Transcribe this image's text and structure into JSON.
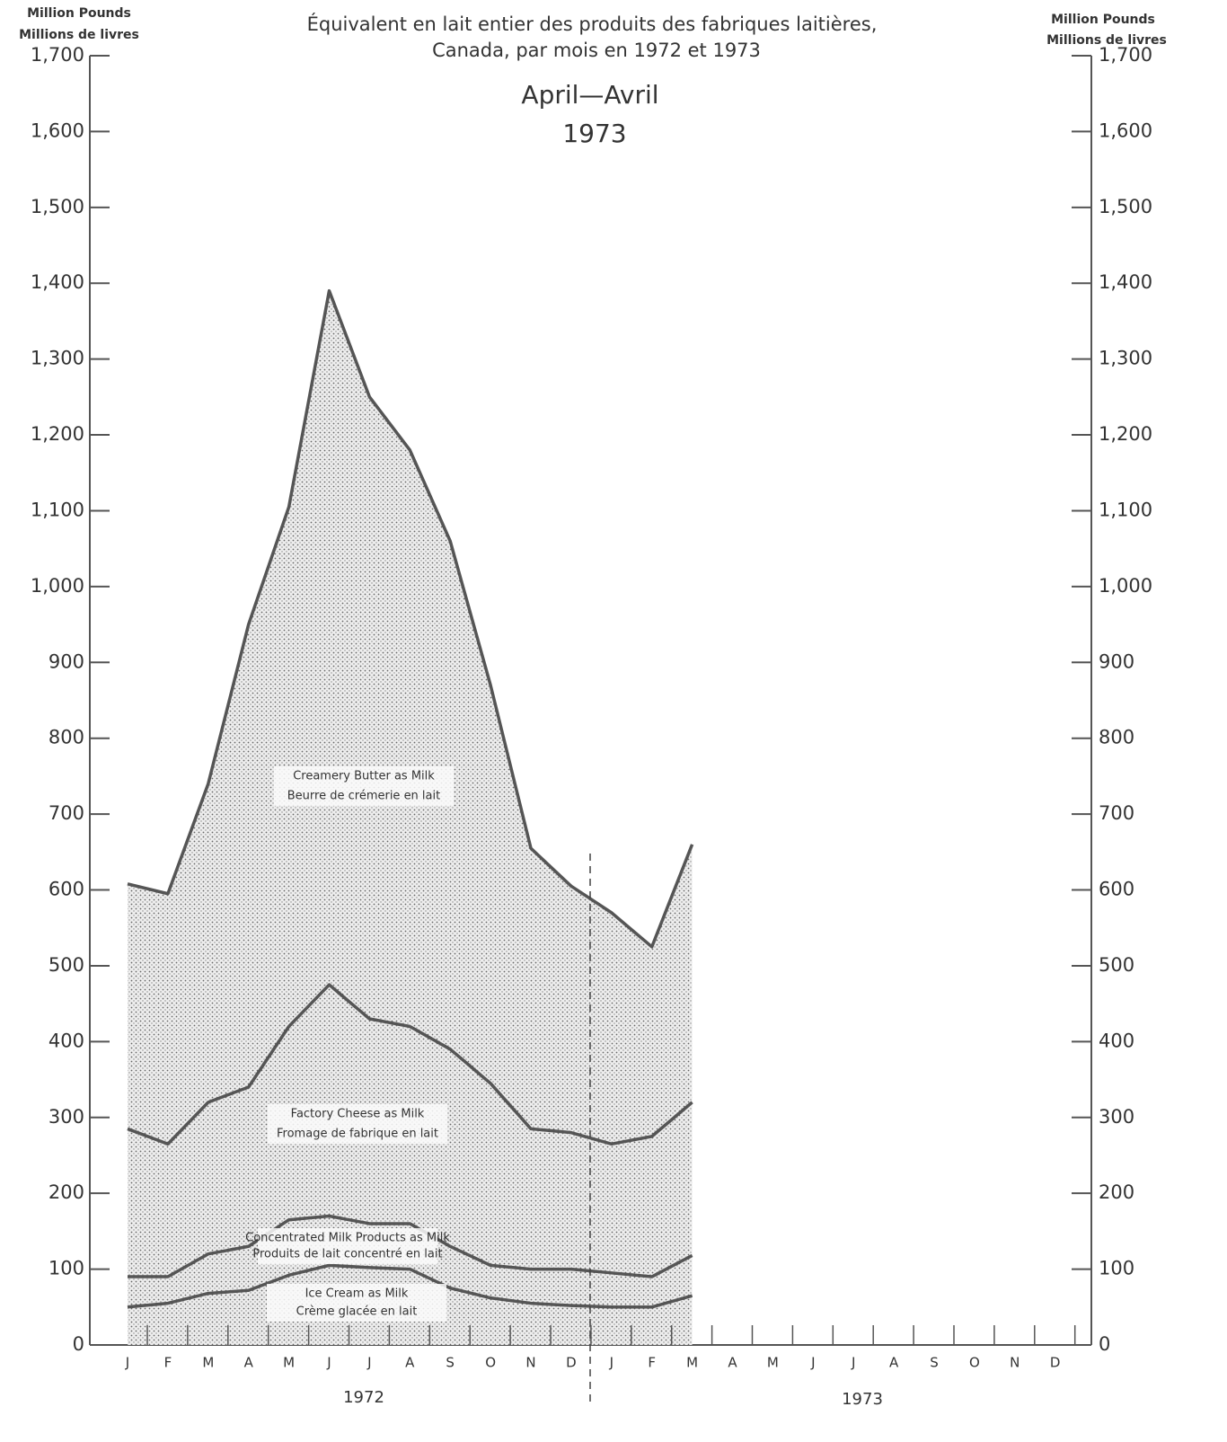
{
  "chart_data": {
    "type": "stacked_area",
    "title": "Équivalent en lait entier des produits des fabriques laitières,",
    "subtitle": "Canada, par mois en 1972 et 1973",
    "edition": "April—Avril",
    "edition_year": "1973",
    "y_label": "Million Pounds",
    "y_label_fr": "Millions de livres",
    "categories": [
      "J",
      "F",
      "M",
      "A",
      "M",
      "J",
      "J",
      "A",
      "S",
      "O",
      "N",
      "D",
      "J",
      "F",
      "M",
      "A",
      "M",
      "J",
      "J",
      "A",
      "S",
      "O",
      "N",
      "D"
    ],
    "years": [
      "1972",
      "1973"
    ],
    "series": [
      {
        "name": "Ice Cream as Milk",
        "name_fr": "Crème glacée en lait",
        "color": "#555555",
        "values": [
          50,
          55,
          68,
          72,
          92,
          105,
          102,
          100,
          75,
          62,
          55,
          52,
          50,
          50,
          65,
          null,
          null,
          null,
          null,
          null,
          null,
          null,
          null,
          null
        ]
      },
      {
        "name": "Concentrated Milk Products as Milk",
        "name_fr": "Produits de lait concentré en lait",
        "color": "#555555",
        "values": [
          40,
          35,
          52,
          58,
          73,
          65,
          58,
          60,
          55,
          43,
          45,
          48,
          45,
          40,
          53,
          null,
          null,
          null,
          null,
          null,
          null,
          null,
          null,
          null
        ]
      },
      {
        "name": "Factory Cheese as Milk",
        "name_fr": "Fromage de fabrique en lait",
        "color": "#555555",
        "values": [
          195,
          175,
          200,
          210,
          255,
          305,
          270,
          260,
          260,
          240,
          185,
          180,
          170,
          185,
          202,
          null,
          null,
          null,
          null,
          null,
          null,
          null,
          null,
          null
        ]
      },
      {
        "name": "Creamery Butter as Milk",
        "name_fr": "Beurre de crémerie en lait",
        "color": "#555555",
        "values": [
          323,
          330,
          420,
          610,
          685,
          915,
          820,
          760,
          670,
          525,
          370,
          325,
          305,
          250,
          340,
          null,
          null,
          null,
          null,
          null,
          null,
          null,
          null,
          null
        ]
      }
    ],
    "ylim": [
      0,
      1700
    ],
    "yticks": [
      0,
      100,
      200,
      300,
      400,
      500,
      600,
      700,
      800,
      900,
      {
        "value": 1000,
        "label": "1,000"
      },
      {
        "value": 1100,
        "label": "1,100"
      },
      {
        "value": 1200,
        "label": "1,200"
      },
      {
        "value": 1300,
        "label": "1,300"
      },
      {
        "value": 1400,
        "label": "1,400"
      },
      {
        "value": 1500,
        "label": "1,500"
      },
      {
        "value": 1600,
        "label": "1,600"
      },
      {
        "value": 1700,
        "label": "1,700"
      }
    ]
  }
}
